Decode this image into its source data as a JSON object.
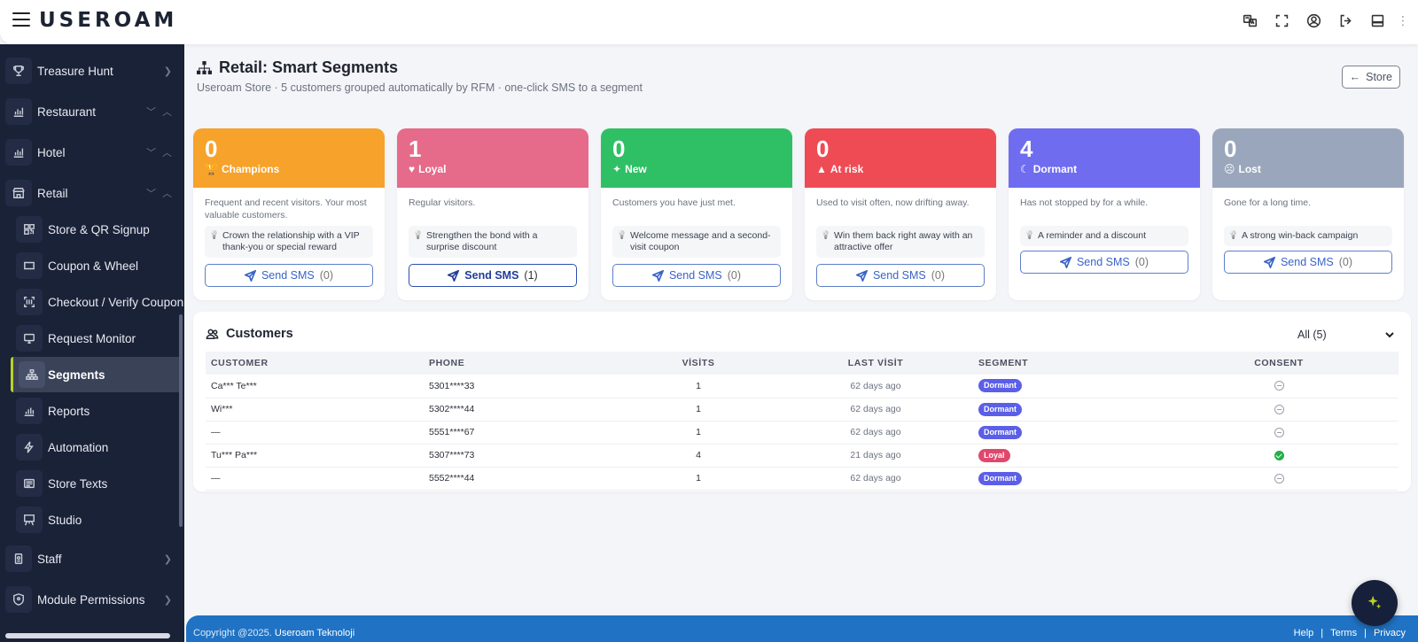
{
  "app": {
    "logo": "USEROAM"
  },
  "sidebar": {
    "items": [
      {
        "label": "Treasure Hunt",
        "icon": "trophy-icon"
      },
      {
        "label": "Restaurant",
        "icon": "chart-icon"
      },
      {
        "label": "Hotel",
        "icon": "chart-icon"
      },
      {
        "label": "Retail",
        "icon": "store-icon"
      },
      {
        "label": "Staff",
        "icon": "badge-icon"
      },
      {
        "label": "Module Permissions",
        "icon": "shield-icon"
      }
    ],
    "retail_sub": [
      {
        "label": "Store & QR Signup",
        "icon": "qr-icon"
      },
      {
        "label": "Coupon & Wheel",
        "icon": "ticket-icon"
      },
      {
        "label": "Checkout / Verify Coupon",
        "icon": "scan-icon"
      },
      {
        "label": "Request Monitor",
        "icon": "monitor-icon"
      },
      {
        "label": "Segments",
        "icon": "sitemap-icon",
        "active": true
      },
      {
        "label": "Reports",
        "icon": "bar-chart-icon"
      },
      {
        "label": "Automation",
        "icon": "bolt-icon"
      },
      {
        "label": "Store Texts",
        "icon": "text-icon"
      },
      {
        "label": "Studio",
        "icon": "easel-icon"
      }
    ]
  },
  "header": {
    "title": "Retail: Smart Segments",
    "subtitle": "Useroam Store · 5 customers grouped automatically by RFM · one-click SMS to a segment",
    "store_button": "Store",
    "store_arrow": "←"
  },
  "segments": [
    {
      "count": "0",
      "name": "Champions",
      "glyph": "🏆",
      "color": "#f7a22b",
      "desc": "Frequent and recent visitors. Your most valuable customers.",
      "tip": "Crown the relationship with a VIP thank-you or special reward",
      "sms_label": "Send SMS",
      "sms_count": "(0)"
    },
    {
      "count": "1",
      "name": "Loyal",
      "glyph": "♥",
      "color": "#e66a8a",
      "desc": "Regular visitors.",
      "tip": "Strengthen the bond with a surprise discount",
      "sms_label": "Send SMS",
      "sms_count": "(1)"
    },
    {
      "count": "0",
      "name": "New",
      "glyph": "✦",
      "color": "#2fc065",
      "desc": "Customers you have just met.",
      "tip": "Welcome message and a second-visit coupon",
      "sms_label": "Send SMS",
      "sms_count": "(0)"
    },
    {
      "count": "0",
      "name": "At risk",
      "glyph": "▲",
      "color": "#ef4b55",
      "desc": "Used to visit often, now drifting away.",
      "tip": "Win them back right away with an attractive offer",
      "sms_label": "Send SMS",
      "sms_count": "(0)"
    },
    {
      "count": "4",
      "name": "Dormant",
      "glyph": "☾",
      "color": "#6f6cf0",
      "desc": "Has not stopped by for a while.",
      "tip": "A reminder and a discount",
      "sms_label": "Send SMS",
      "sms_count": "(0)"
    },
    {
      "count": "0",
      "name": "Lost",
      "glyph": "☹",
      "color": "#9aa6bb",
      "desc": "Gone for a long time.",
      "tip": "A strong win-back campaign",
      "sms_label": "Send SMS",
      "sms_count": "(0)"
    }
  ],
  "customers": {
    "title": "Customers",
    "filter": "All (5)",
    "columns": [
      "CUSTOMER",
      "PHONE",
      "VİSİTS",
      "LAST VİSİT",
      "SEGMENT",
      "CONSENT"
    ],
    "rows": [
      {
        "customer": "Ca*** Te***",
        "phone": "5301****33",
        "visits": "1",
        "last": "62 days ago",
        "segment": "Dormant",
        "seg_color": "#5b5fe8",
        "consent": false
      },
      {
        "customer": "Wi***",
        "phone": "5302****44",
        "visits": "1",
        "last": "62 days ago",
        "segment": "Dormant",
        "seg_color": "#5b5fe8",
        "consent": false
      },
      {
        "customer": "—",
        "phone": "5551****67",
        "visits": "1",
        "last": "62 days ago",
        "segment": "Dormant",
        "seg_color": "#5b5fe8",
        "consent": false
      },
      {
        "customer": "Tu*** Pa***",
        "phone": "5307****73",
        "visits": "4",
        "last": "21 days ago",
        "segment": "Loyal",
        "seg_color": "#e0476c",
        "consent": true
      },
      {
        "customer": "—",
        "phone": "5552****44",
        "visits": "1",
        "last": "62 days ago",
        "segment": "Dormant",
        "seg_color": "#5b5fe8",
        "consent": false
      }
    ]
  },
  "footer": {
    "copyright": "Copyright @2025.",
    "company": "Useroam Teknoloji",
    "links": [
      "Help",
      "|",
      "Terms",
      "|",
      "Privacy"
    ]
  },
  "colors": {
    "sidebar_bg": "#1a2238",
    "footer_bg": "#2073c4",
    "accent": "#b9d12a"
  }
}
